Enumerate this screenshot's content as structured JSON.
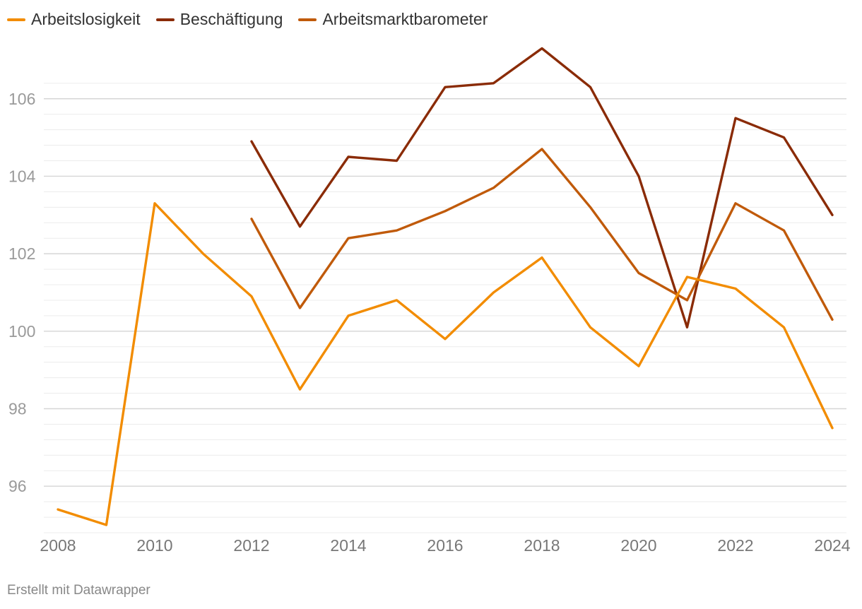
{
  "chart_data": {
    "type": "line",
    "title": "",
    "xlabel": "",
    "ylabel": "",
    "x": [
      2008,
      2009,
      2010,
      2011,
      2012,
      2013,
      2014,
      2015,
      2016,
      2017,
      2018,
      2019,
      2020,
      2021,
      2022,
      2023,
      2024
    ],
    "x_ticks": [
      2008,
      2010,
      2012,
      2014,
      2016,
      2018,
      2020,
      2022,
      2024
    ],
    "y_ticks": [
      96,
      98,
      100,
      102,
      104,
      106
    ],
    "ylim": [
      94.8,
      107.6
    ],
    "grid": "horizontal",
    "legend_position": "top-left",
    "series": [
      {
        "name": "Arbeitslosigkeit",
        "color": "#f28c00",
        "values": [
          95.4,
          95.0,
          103.3,
          102.0,
          100.9,
          98.5,
          100.4,
          100.8,
          99.8,
          101.0,
          101.9,
          100.1,
          99.1,
          101.4,
          101.1,
          100.1,
          97.5
        ]
      },
      {
        "name": "Beschäftigung",
        "color": "#8a2b06",
        "values": [
          null,
          null,
          null,
          null,
          104.9,
          102.7,
          104.5,
          104.4,
          106.3,
          106.4,
          107.3,
          106.3,
          104.0,
          100.1,
          105.5,
          105.0,
          103.0
        ]
      },
      {
        "name": "Arbeitsmarktbarometer",
        "color": "#c05a0a",
        "values": [
          null,
          null,
          null,
          null,
          102.9,
          100.6,
          102.4,
          102.6,
          103.1,
          103.7,
          104.7,
          103.2,
          101.5,
          100.8,
          103.3,
          102.6,
          100.3
        ]
      }
    ]
  },
  "footer": {
    "credit": "Erstellt mit Datawrapper"
  }
}
